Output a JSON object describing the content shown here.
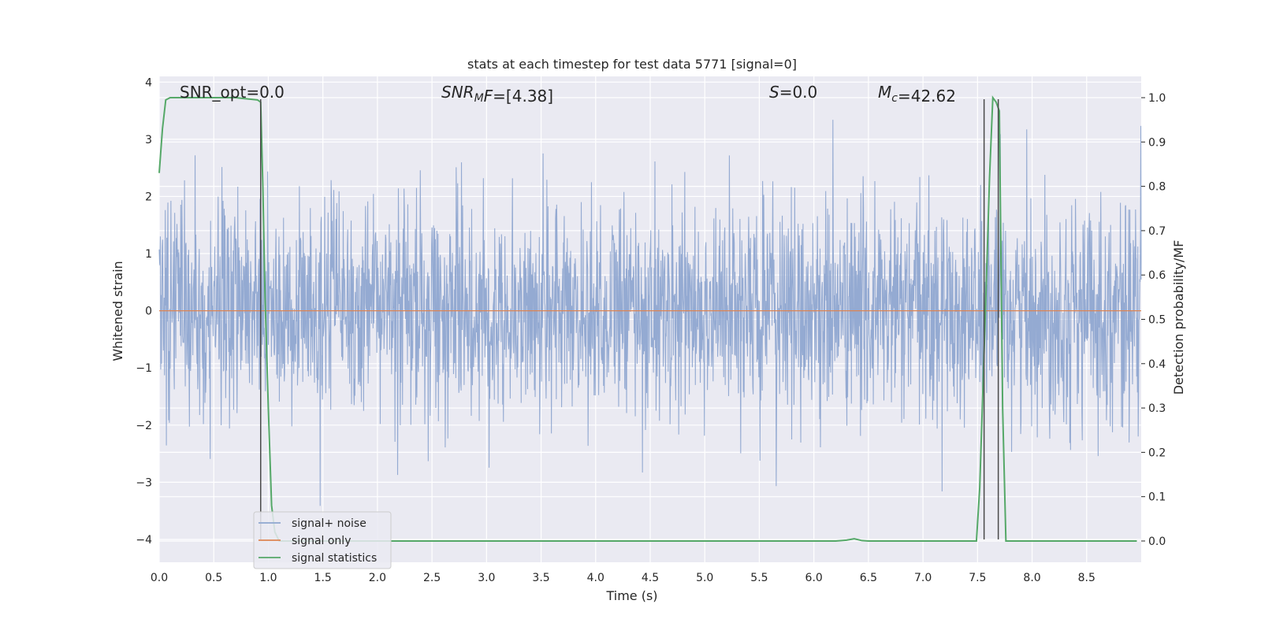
{
  "chart_data": {
    "type": "line",
    "title": "stats at each timestep for test data 5771 [signal=0]",
    "xlabel": "Time (s)",
    "ylabel": "Whitened strain",
    "ylabel_right": "Detection probability/MF",
    "xlim": [
      0,
      9.0
    ],
    "ylim": [
      -4.4,
      4.1
    ],
    "ylim_right": [
      -0.048,
      1.048
    ],
    "x_ticks": [
      0.0,
      0.5,
      1.0,
      1.5,
      2.0,
      2.5,
      3.0,
      3.5,
      4.0,
      4.5,
      5.0,
      5.5,
      6.0,
      6.5,
      7.0,
      7.5,
      8.0,
      8.5
    ],
    "x_tick_labels": [
      "0.0",
      "0.5",
      "1.0",
      "1.5",
      "2.0",
      "2.5",
      "3.0",
      "3.5",
      "4.0",
      "4.5",
      "5.0",
      "5.5",
      "6.0",
      "6.5",
      "7.0",
      "7.5",
      "8.0",
      "8.5"
    ],
    "y_ticks": [
      4,
      3,
      2,
      1,
      0,
      -1,
      -2,
      -3,
      -4
    ],
    "y_tick_labels": [
      "4",
      "3",
      "2",
      "1",
      "0",
      "−1",
      "−2",
      "−3",
      "−4"
    ],
    "y_right_ticks": [
      1.0,
      0.9,
      0.8,
      0.7,
      0.6,
      0.5,
      0.4,
      0.3,
      0.2,
      0.1,
      0.0
    ],
    "y_right_tick_labels": [
      "1.0",
      "0.9",
      "0.8",
      "0.7",
      "0.6",
      "0.5",
      "0.4",
      "0.3",
      "0.2",
      "0.1",
      "0.0"
    ],
    "grid": true,
    "legend_position": "bottom-left",
    "annotations": [
      {
        "id": "snr-opt",
        "parts": [
          {
            "t": "SNR_opt=0.0",
            "s": "n"
          }
        ]
      },
      {
        "id": "snr-mf",
        "parts": [
          {
            "t": "SNR",
            "s": "i"
          },
          {
            "t": "M",
            "s": "sub"
          },
          {
            "t": "F",
            "s": "i"
          },
          {
            "t": "=[4.38]",
            "s": "n"
          }
        ]
      },
      {
        "id": "s-value",
        "parts": [
          {
            "t": "S",
            "s": "i"
          },
          {
            "t": "=0.0",
            "s": "n"
          }
        ]
      },
      {
        "id": "mc-value",
        "parts": [
          {
            "t": "M",
            "s": "i"
          },
          {
            "t": "c",
            "s": "sub"
          },
          {
            "t": "=42.62",
            "s": "n"
          }
        ]
      }
    ],
    "series": [
      {
        "name": "signal+ noise",
        "color": "#8fa7d0",
        "axis": "left",
        "kind": "noise",
        "sigma": 0.95,
        "x_range": [
          0.0,
          9.0
        ]
      },
      {
        "name": "signal only",
        "color": "#dd8452",
        "axis": "left",
        "x": [
          0.0,
          9.0
        ],
        "y": [
          0.0,
          0.0
        ]
      },
      {
        "name": "signal statistics",
        "color": "#55a868",
        "axis": "right",
        "x": [
          0.0,
          0.03,
          0.06,
          0.1,
          0.2,
          0.3,
          0.5,
          0.7,
          0.9,
          0.93,
          0.95,
          0.97,
          1.0,
          1.03,
          1.06,
          1.1,
          1.5,
          2.0,
          3.0,
          4.0,
          5.0,
          6.0,
          6.2,
          6.3,
          6.37,
          6.44,
          6.5,
          7.0,
          7.49,
          7.52,
          7.55,
          7.58,
          7.61,
          7.64,
          7.67,
          7.7,
          7.73,
          7.76,
          7.8,
          8.0,
          8.5,
          8.96
        ],
        "y": [
          0.83,
          0.93,
          0.995,
          1.0,
          1.0,
          1.0,
          1.0,
          1.0,
          0.995,
          0.99,
          0.8,
          0.55,
          0.3,
          0.08,
          0.02,
          0.0,
          0.0,
          0.0,
          0.0,
          0.0,
          0.0,
          0.0,
          0.0,
          0.002,
          0.005,
          0.001,
          0.0,
          0.0,
          0.0,
          0.12,
          0.35,
          0.58,
          0.82,
          1.0,
          0.99,
          0.97,
          0.3,
          0.0,
          0.0,
          0.0,
          0.0,
          0.0
        ]
      },
      {
        "name": "",
        "color": "#4a4a4a",
        "axis": "left",
        "kind": "vlines",
        "segments": [
          {
            "x": 0.93,
            "y0": -4.0,
            "y1": 3.7
          },
          {
            "x": 7.56,
            "y0": -4.0,
            "y1": 3.7
          },
          {
            "x": 7.69,
            "y0": -4.0,
            "y1": 3.7
          }
        ]
      }
    ]
  }
}
